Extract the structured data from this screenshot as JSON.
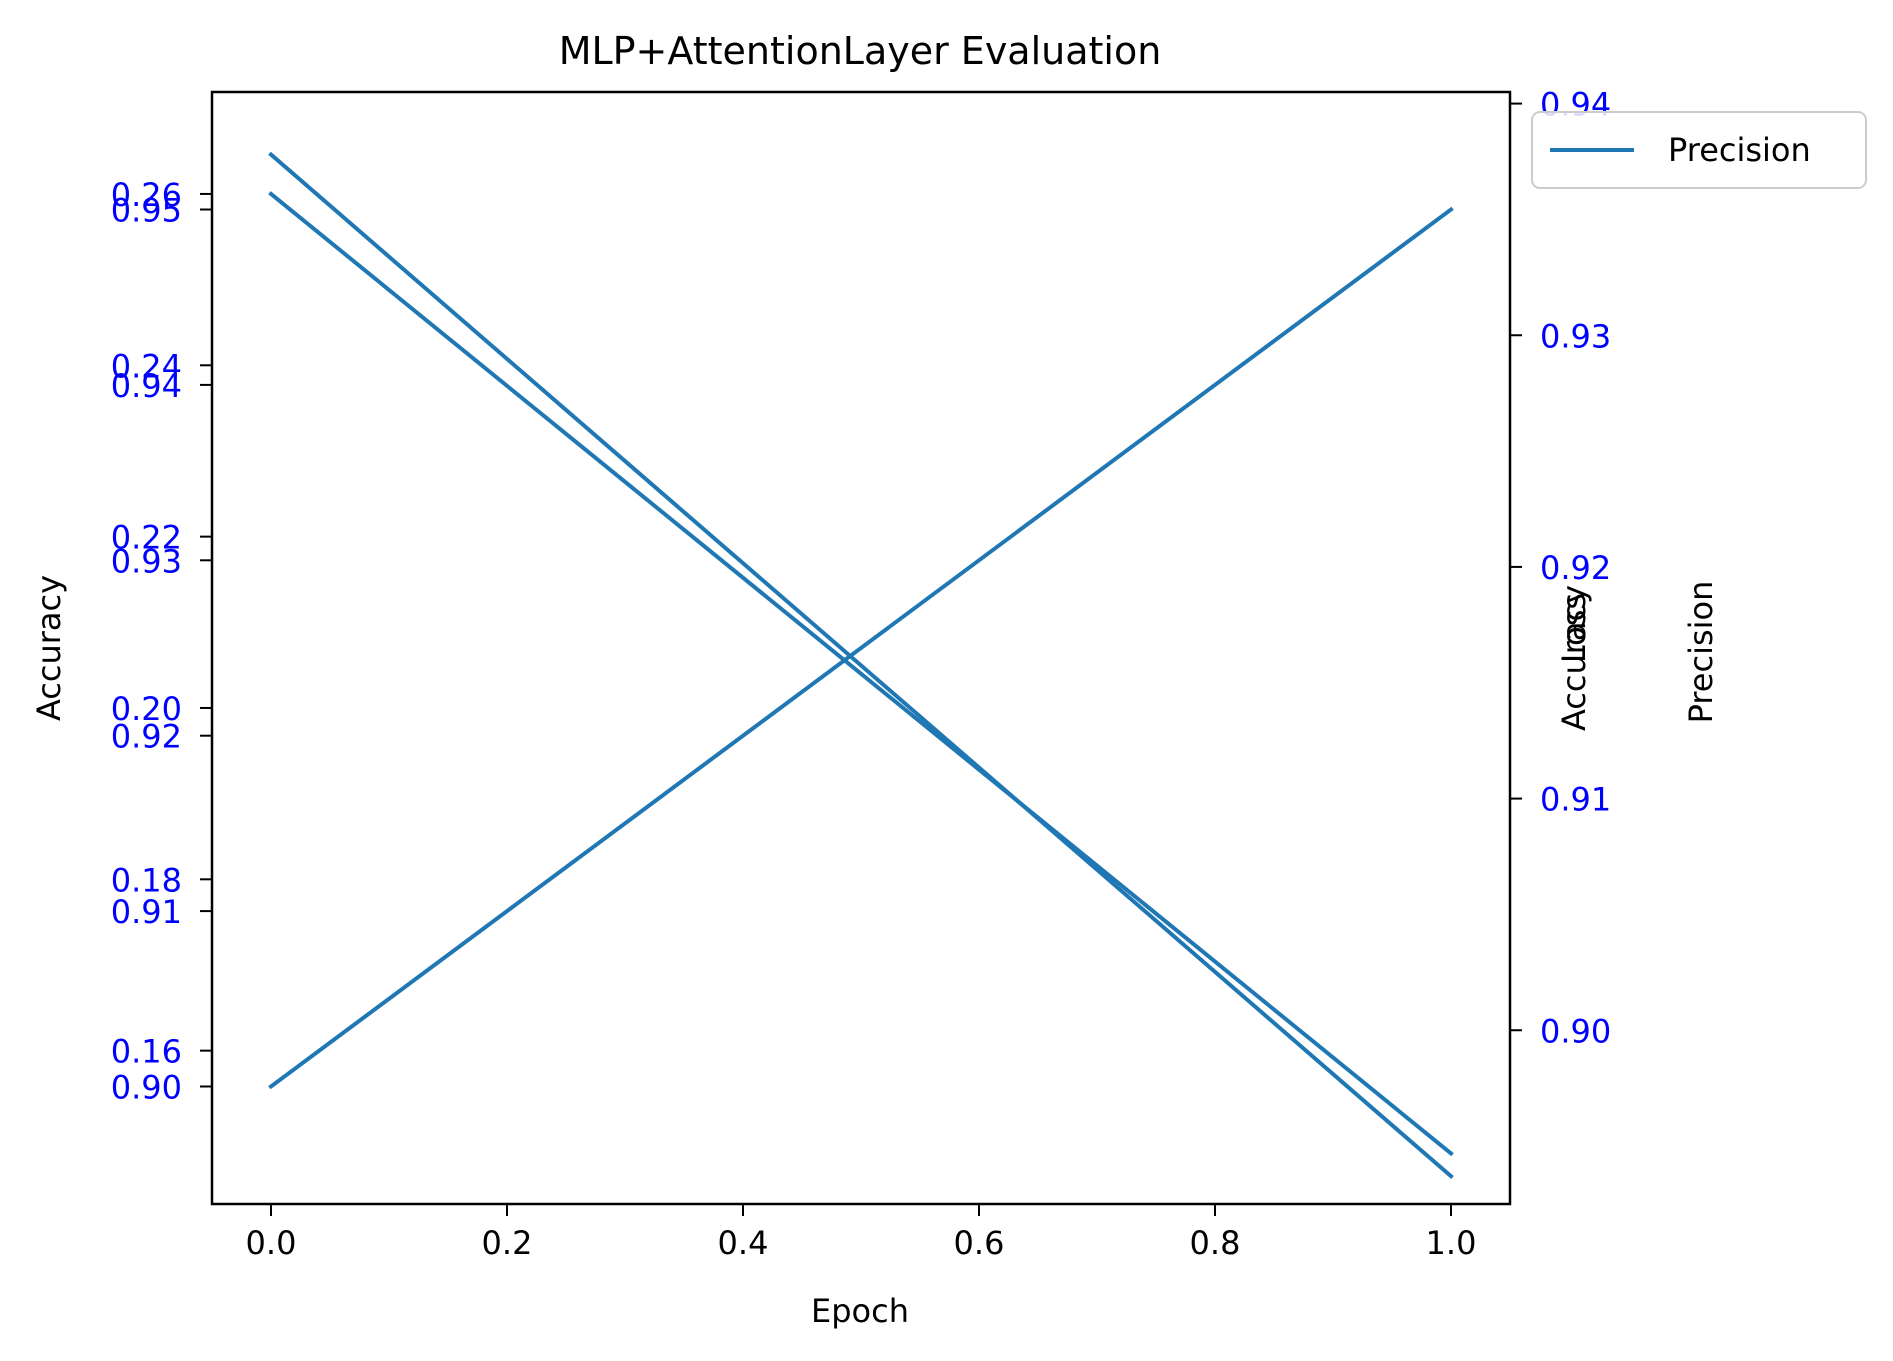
{
  "chart_data": {
    "type": "line",
    "title": "MLP+AttentionLayer Evaluation",
    "xlabel": "Epoch",
    "xlim": [
      -0.05,
      1.05
    ],
    "xticks": [
      0.0,
      0.2,
      0.4,
      0.6,
      0.8,
      1.0
    ],
    "xtick_labels": [
      "0.0",
      "0.2",
      "0.4",
      "0.6",
      "0.8",
      "1.0"
    ],
    "tick_label_color": "#0000ff",
    "line_color": "#1f77b4",
    "legend": {
      "placement": "outside-top-right",
      "entries": [
        "Precision"
      ]
    },
    "axes": [
      {
        "id": "left-accuracy",
        "side": "left",
        "label": "Accuracy",
        "ylim": [
          0.8933,
          0.9567
        ],
        "ticks": [
          0.9,
          0.91,
          0.92,
          0.93,
          0.94,
          0.95
        ],
        "tick_labels": [
          "0.90",
          "0.91",
          "0.92",
          "0.93",
          "0.94",
          "0.95"
        ]
      },
      {
        "id": "left-loss",
        "side": "left",
        "label": "",
        "ylim": [
          0.1421,
          0.2719
        ],
        "ticks": [
          0.16,
          0.18,
          0.2,
          0.22,
          0.24,
          0.26
        ],
        "tick_labels": [
          "0.16",
          "0.18",
          "0.20",
          "0.22",
          "0.24",
          "0.26"
        ]
      },
      {
        "id": "right-accuracy",
        "side": "right-inner",
        "label": "Accuracy",
        "ylim": [
          0.8933,
          0.9567
        ],
        "ticks": [],
        "tick_labels": []
      },
      {
        "id": "right-loss",
        "side": "right-inner",
        "label": "Loss",
        "ylim": [
          0.1421,
          0.2719
        ],
        "ticks": [],
        "tick_labels": []
      },
      {
        "id": "right-precision",
        "side": "right",
        "label": "Precision",
        "ylim": [
          0.8925,
          0.9405
        ],
        "ticks": [
          0.9,
          0.91,
          0.92,
          0.93,
          0.94
        ],
        "tick_labels": [
          "0.90",
          "0.91",
          "0.92",
          "0.93",
          "0.94"
        ]
      }
    ],
    "series": [
      {
        "axis": "left-accuracy",
        "x": [
          0.0,
          1.0
        ],
        "values": [
          0.9,
          0.95
        ]
      },
      {
        "axis": "left-loss",
        "x": [
          0.0,
          1.0
        ],
        "values": [
          0.26,
          0.148
        ]
      },
      {
        "axis": "right-precision",
        "x": [
          0.0,
          1.0
        ],
        "values": [
          0.9378,
          0.8937
        ],
        "name": "Precision"
      }
    ]
  }
}
